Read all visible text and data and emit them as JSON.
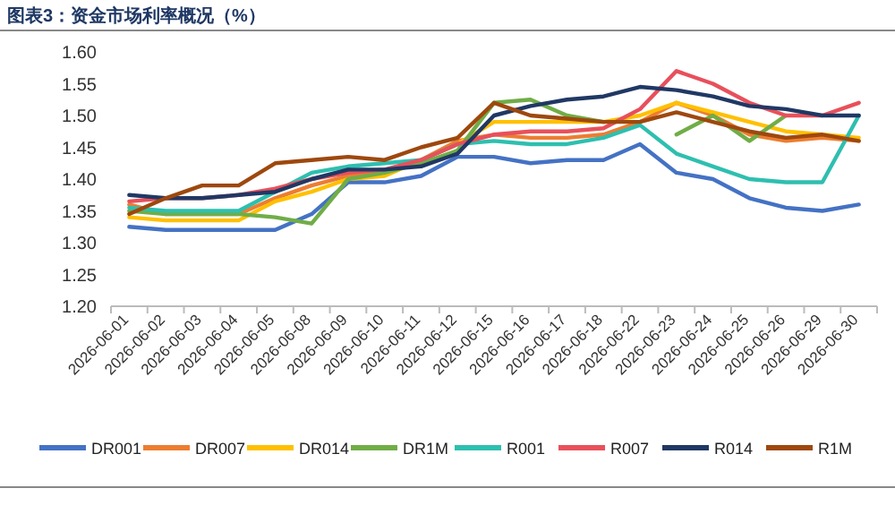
{
  "chart_data": {
    "type": "line",
    "title": "图表3：资金市场利率概况（%）",
    "categories": [
      "2026-06-01",
      "2026-06-02",
      "2026-06-03",
      "2026-06-04",
      "2026-06-05",
      "2026-06-08",
      "2026-06-09",
      "2026-06-10",
      "2026-06-11",
      "2026-06-12",
      "2026-06-15",
      "2026-06-16",
      "2026-06-17",
      "2026-06-18",
      "2026-06-22",
      "2026-06-23",
      "2026-06-24",
      "2026-06-25",
      "2026-06-26",
      "2026-06-29",
      "2026-06-30"
    ],
    "ylim": [
      1.2,
      1.6
    ],
    "yticks": [
      {
        "value": 1.2,
        "label": "1.20"
      },
      {
        "value": 1.25,
        "label": "1.25"
      },
      {
        "value": 1.3,
        "label": "1.30"
      },
      {
        "value": 1.35,
        "label": "1.35"
      },
      {
        "value": 1.4,
        "label": "1.40"
      },
      {
        "value": 1.45,
        "label": "1.45"
      },
      {
        "value": 1.5,
        "label": "1.50"
      },
      {
        "value": 1.55,
        "label": "1.55"
      },
      {
        "value": 1.6,
        "label": "1.60"
      }
    ],
    "grid": false,
    "legend": "bottom",
    "marker": "none",
    "line_style": "solid",
    "series": [
      {
        "name": "DR001",
        "color": "#4472c4",
        "values": [
          1.325,
          1.32,
          1.32,
          1.32,
          1.32,
          1.345,
          1.395,
          1.395,
          1.405,
          1.435,
          1.435,
          1.425,
          1.43,
          1.43,
          1.455,
          1.41,
          1.4,
          1.37,
          1.355,
          1.35,
          1.36
        ]
      },
      {
        "name": "DR007",
        "color": "#ed7d31",
        "values": [
          1.36,
          1.345,
          1.345,
          1.345,
          1.37,
          1.39,
          1.405,
          1.41,
          1.43,
          1.46,
          1.47,
          1.465,
          1.465,
          1.47,
          1.49,
          1.52,
          1.5,
          1.47,
          1.46,
          1.465,
          1.46
        ]
      },
      {
        "name": "DR014",
        "color": "#ffc000",
        "values": [
          1.34,
          1.335,
          1.335,
          1.335,
          1.365,
          1.38,
          1.4,
          1.405,
          1.43,
          1.455,
          1.49,
          1.49,
          1.49,
          1.49,
          1.5,
          1.52,
          1.505,
          1.49,
          1.475,
          1.47,
          1.465
        ]
      },
      {
        "name": "DR1M",
        "color": "#70ad47",
        "values": [
          1.35,
          1.345,
          1.345,
          1.345,
          1.34,
          1.33,
          1.4,
          1.41,
          1.425,
          1.445,
          1.52,
          1.525,
          1.5,
          1.49,
          null,
          1.47,
          1.5,
          1.46,
          1.5,
          null,
          null
        ]
      },
      {
        "name": "R001",
        "color": "#2ebfaf",
        "values": [
          1.355,
          1.35,
          1.35,
          1.35,
          1.38,
          1.41,
          1.42,
          1.425,
          1.43,
          1.455,
          1.46,
          1.455,
          1.455,
          1.465,
          1.485,
          1.44,
          1.42,
          1.4,
          1.395,
          1.395,
          1.5
        ]
      },
      {
        "name": "R007",
        "color": "#e8505b",
        "values": [
          1.365,
          1.37,
          1.37,
          1.375,
          1.385,
          1.4,
          1.41,
          1.415,
          1.43,
          1.455,
          1.47,
          1.475,
          1.475,
          1.48,
          1.51,
          1.57,
          1.55,
          1.52,
          1.5,
          1.5,
          1.52
        ]
      },
      {
        "name": "R014",
        "color": "#203864",
        "values": [
          1.375,
          1.37,
          1.37,
          1.375,
          1.38,
          1.4,
          1.415,
          1.415,
          1.42,
          1.44,
          1.5,
          1.515,
          1.525,
          1.53,
          1.545,
          1.54,
          1.53,
          1.515,
          1.51,
          1.5,
          1.5
        ]
      },
      {
        "name": "R1M",
        "color": "#9e480e",
        "values": [
          1.345,
          1.37,
          1.39,
          1.39,
          1.425,
          1.43,
          1.435,
          1.43,
          1.45,
          1.465,
          1.52,
          1.5,
          1.495,
          1.49,
          1.49,
          1.505,
          1.49,
          1.475,
          1.465,
          1.47,
          1.46
        ]
      }
    ]
  }
}
